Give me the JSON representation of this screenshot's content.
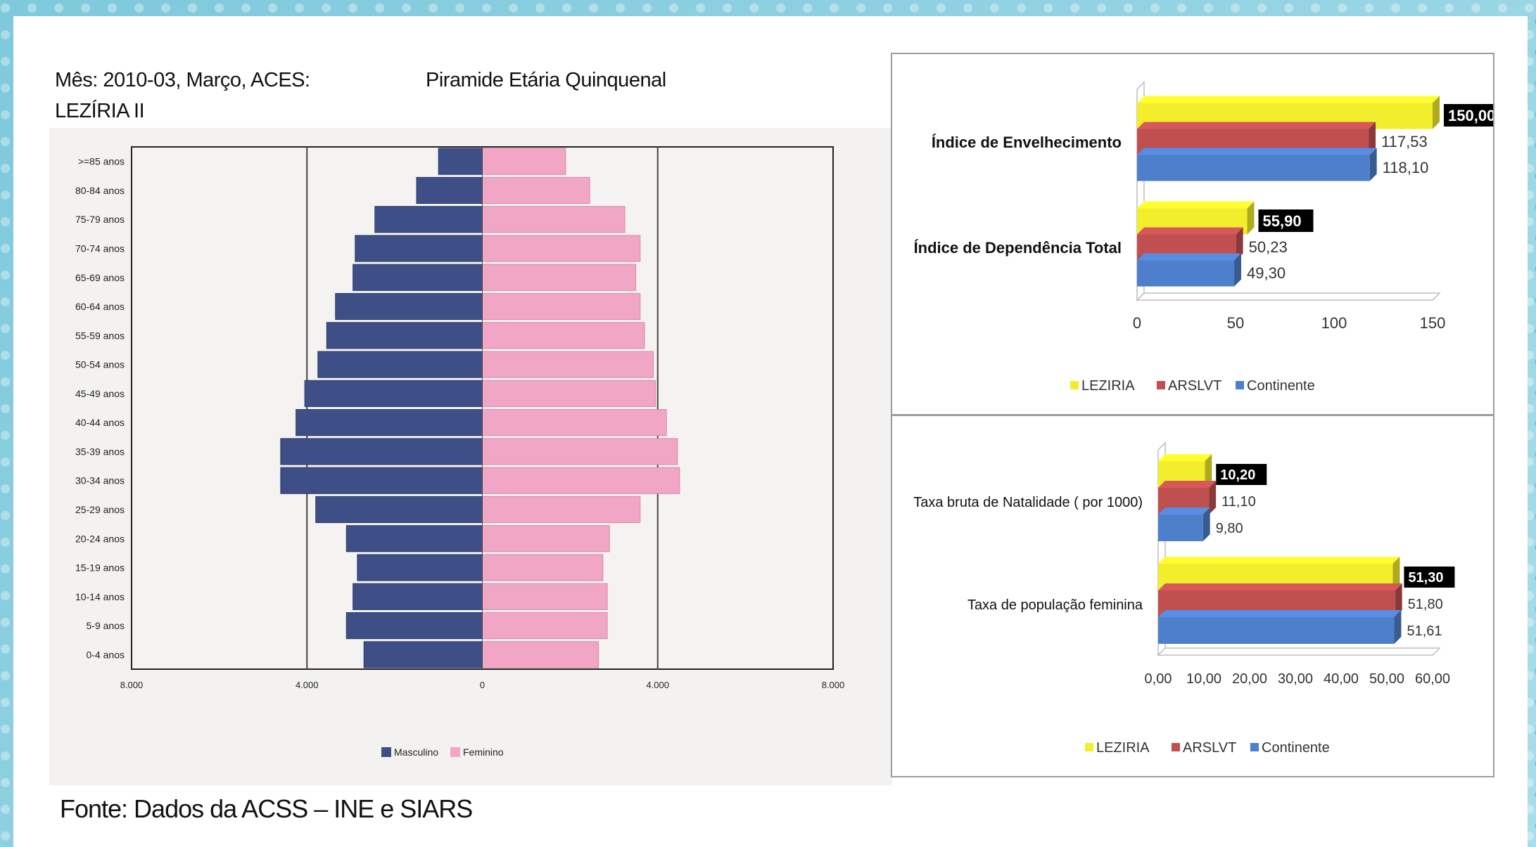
{
  "header": {
    "left_line1": "Mês: 2010-03, Março, ACES:",
    "left_line2": "LEZÍRIA II",
    "title": "Piramide Etária Quinquenal"
  },
  "source": "Fonte: Dados da ACSS – INE e SIARS",
  "colors": {
    "masculino": "#3d4f86",
    "feminino": "#f2a6c6",
    "leziria": "#f3ee2b",
    "arslvt": "#c04f4f",
    "continente": "#4e7fcb"
  },
  "chart_data": [
    {
      "type": "bar",
      "orientation": "horizontal-pyramid",
      "title": "Piramide Etária Quinquenal",
      "categories": [
        ">=85 anos",
        "80-84 anos",
        "75-79 anos",
        "70-74 anos",
        "65-69 anos",
        "60-64 anos",
        "55-59 anos",
        "50-54 anos",
        "45-49 anos",
        "40-44 anos",
        "35-39 anos",
        "30-34 anos",
        "25-29 anos",
        "20-24 anos",
        "15-19 anos",
        "10-14 anos",
        "5-9 anos",
        "0-4 anos"
      ],
      "series": [
        {
          "name": "Masculino",
          "values": [
            1000,
            1500,
            2450,
            2900,
            2950,
            3350,
            3550,
            3750,
            4050,
            4250,
            4600,
            4600,
            3800,
            3100,
            2850,
            2950,
            3100,
            2700
          ]
        },
        {
          "name": "Feminino",
          "values": [
            1900,
            2450,
            3250,
            3600,
            3500,
            3600,
            3700,
            3900,
            3950,
            4200,
            4450,
            4500,
            3600,
            2900,
            2750,
            2850,
            2850,
            2650
          ]
        }
      ],
      "xlim": [
        -8000,
        8000
      ],
      "xticks": [
        "8.000",
        "4.000",
        "0",
        "4.000",
        "8.000"
      ],
      "legend": [
        "Masculino",
        "Feminino"
      ],
      "legend_position": "bottom",
      "grid": true
    },
    {
      "type": "bar",
      "orientation": "horizontal-3d",
      "categories": [
        "Índice de Envelhecimento",
        "Índice de Dependência Total"
      ],
      "series": [
        {
          "name": "LEZIRIA",
          "values": [
            150.0,
            55.9
          ],
          "labels": [
            "150,00",
            "55,90"
          ]
        },
        {
          "name": "ARSLVT",
          "values": [
            117.53,
            50.23
          ],
          "labels": [
            "117,53",
            "50,23"
          ]
        },
        {
          "name": "Continente",
          "values": [
            118.1,
            49.3
          ],
          "labels": [
            "118,10",
            "49,30"
          ]
        }
      ],
      "xlim": [
        0,
        150
      ],
      "xticks": [
        "0",
        "50",
        "100",
        "150"
      ],
      "legend": [
        "LEZIRIA",
        "ARSLVT",
        "Continente"
      ],
      "legend_position": "bottom"
    },
    {
      "type": "bar",
      "orientation": "horizontal-3d",
      "categories": [
        "Taxa bruta de Natalidade ( por 1000)",
        "Taxa de população feminina"
      ],
      "series": [
        {
          "name": "LEZIRIA",
          "values": [
            10.2,
            51.3
          ],
          "labels": [
            "10,20",
            "51,30"
          ]
        },
        {
          "name": "ARSLVT",
          "values": [
            11.1,
            51.8
          ],
          "labels": [
            "11,10",
            "51,80"
          ]
        },
        {
          "name": "Continente",
          "values": [
            9.8,
            51.61
          ],
          "labels": [
            "9,80",
            "51,61"
          ]
        }
      ],
      "xlim": [
        0,
        60
      ],
      "xticks": [
        "0,00",
        "10,00",
        "20,00",
        "30,00",
        "40,00",
        "50,00",
        "60,00"
      ],
      "legend": [
        "LEZIRIA",
        "ARSLVT",
        "Continente"
      ],
      "legend_position": "bottom"
    }
  ]
}
